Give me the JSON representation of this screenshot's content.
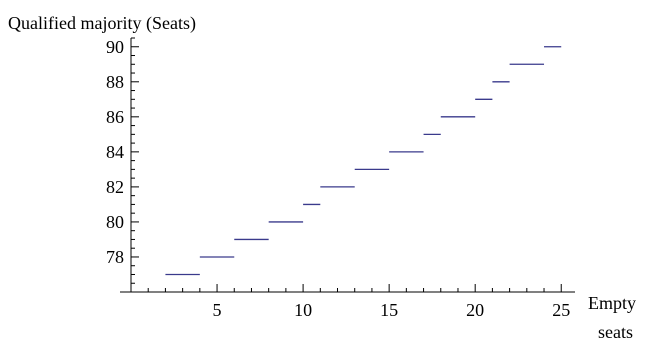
{
  "chart_data": {
    "type": "line",
    "title": "",
    "ylabel": "Qualified majority (Seats)",
    "xlabel_line1": "Empty",
    "xlabel_line2": "seats",
    "xlim": [
      0,
      25.8
    ],
    "ylim": [
      76,
      90.5
    ],
    "x_ticks": [
      5,
      10,
      15,
      20,
      25
    ],
    "y_ticks": [
      78,
      80,
      82,
      84,
      86,
      88,
      90
    ],
    "grid": false,
    "series": [
      {
        "color": "#3a3a8c",
        "segments": [
          {
            "x": [
              2,
              4
            ],
            "y": 77
          },
          {
            "x": [
              4,
              6
            ],
            "y": 78
          },
          {
            "x": [
              6,
              8
            ],
            "y": 79
          },
          {
            "x": [
              8,
              10
            ],
            "y": 80
          },
          {
            "x": [
              10,
              11
            ],
            "y": 81
          },
          {
            "x": [
              11,
              13
            ],
            "y": 82
          },
          {
            "x": [
              13,
              15
            ],
            "y": 83
          },
          {
            "x": [
              15,
              17
            ],
            "y": 84
          },
          {
            "x": [
              17,
              18
            ],
            "y": 85
          },
          {
            "x": [
              18,
              20
            ],
            "y": 86
          },
          {
            "x": [
              20,
              21
            ],
            "y": 87
          },
          {
            "x": [
              21,
              22
            ],
            "y": 88
          },
          {
            "x": [
              22,
              24
            ],
            "y": 89
          },
          {
            "x": [
              24,
              25
            ],
            "y": 90
          }
        ]
      }
    ]
  }
}
